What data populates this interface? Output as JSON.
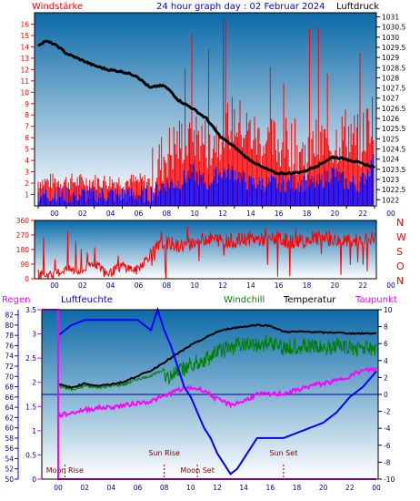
{
  "colors": {
    "red": "#ff0000",
    "blue": "#0000ff",
    "black": "#000000",
    "green": "#008000",
    "magenta": "#ff00ff",
    "navy": "#00008b",
    "maroon": "#800000",
    "bg_top": "#0b6aa8",
    "bg_bottom": "#ffffff"
  },
  "header": {
    "left": "Windstärke",
    "center": "24 hour graph day : 02 Februar 2024",
    "right": "Luftdruck"
  },
  "chart_data": [
    {
      "type": "line",
      "name": "wind-and-pressure",
      "x_ticks": [
        "00",
        "02",
        "04",
        "06",
        "08",
        "10",
        "12",
        "14",
        "16",
        "18",
        "20",
        "22",
        "00"
      ],
      "left_axis": {
        "label": "Windstärke",
        "ticks": [
          1,
          2,
          3,
          4,
          5,
          6,
          7,
          8,
          9,
          10,
          11,
          12,
          13,
          14,
          15,
          16
        ],
        "ylim": [
          0,
          17
        ]
      },
      "right_axis": {
        "label": "Luftdruck",
        "ticks": [
          1031,
          1030.5,
          1030,
          1029.5,
          1029,
          1028.5,
          1028,
          1027.5,
          1027,
          1026.5,
          1026,
          1025.5,
          1025,
          1024.5,
          1024,
          1023.5,
          1023,
          1022.5,
          1022
        ],
        "ylim": [
          1021.7,
          1031.2
        ]
      },
      "series": [
        {
          "name": "Luftdruck",
          "axis": "right",
          "color": "#000000",
          "x": [
            0,
            0.5,
            1,
            1.5,
            2,
            3,
            4,
            5,
            6,
            7,
            8,
            8.5,
            9,
            9.5,
            10,
            11,
            12,
            13,
            14,
            15,
            16,
            17,
            18,
            19,
            20,
            20.5,
            21,
            22,
            23,
            24
          ],
          "y": [
            1029.6,
            1029.8,
            1029.7,
            1029.5,
            1029.2,
            1028.9,
            1028.6,
            1028.4,
            1028.3,
            1028.1,
            1027.5,
            1027.6,
            1027.6,
            1027.3,
            1026.9,
            1026.5,
            1026.0,
            1025.1,
            1024.6,
            1024.0,
            1023.6,
            1023.3,
            1023.3,
            1023.4,
            1023.7,
            1023.9,
            1024.1,
            1024.0,
            1023.8,
            1023.6
          ]
        },
        {
          "name": "wind gust (red)",
          "axis": "left",
          "color": "#ff0000",
          "x": [
            0,
            2,
            4,
            6,
            8,
            9,
            10,
            11,
            12,
            13,
            14,
            15,
            16,
            17,
            18,
            19,
            20,
            21,
            22,
            23,
            24
          ],
          "y": [
            2,
            2,
            2,
            2,
            2,
            4,
            5,
            6,
            5,
            6,
            7,
            6,
            5,
            5,
            5,
            4,
            5,
            5,
            6,
            5,
            8
          ]
        },
        {
          "name": "wind avg (blue)",
          "axis": "left",
          "color": "#0000ff",
          "x": [
            0,
            2,
            4,
            6,
            8,
            9,
            10,
            11,
            12,
            13,
            14,
            15,
            16,
            17,
            18,
            19,
            20,
            21,
            22,
            23,
            24
          ],
          "y": [
            1,
            1,
            1,
            1,
            1,
            2,
            2,
            3,
            2,
            3,
            3,
            2,
            2,
            2,
            2,
            2,
            2,
            3,
            2,
            2,
            4
          ]
        }
      ]
    },
    {
      "type": "line",
      "name": "wind-direction",
      "x_ticks": [
        "00",
        "02",
        "04",
        "06",
        "08",
        "10",
        "12",
        "14",
        "16",
        "18",
        "20",
        "22",
        "00"
      ],
      "left_axis": {
        "ticks": [
          0,
          90,
          180,
          270,
          360
        ],
        "ylim": [
          0,
          360
        ]
      },
      "right_labels": [
        "N",
        "W",
        "S",
        "O",
        "N"
      ],
      "series": [
        {
          "name": "wind direction",
          "color": "#ff0000",
          "x": [
            0,
            1,
            2,
            3,
            4,
            5,
            6,
            7,
            8,
            9,
            10,
            11,
            12,
            13,
            14,
            15,
            16,
            17,
            18,
            19,
            20,
            21,
            22,
            23,
            24
          ],
          "y": [
            30,
            20,
            60,
            40,
            100,
            30,
            80,
            50,
            150,
            230,
            200,
            220,
            250,
            240,
            230,
            250,
            240,
            250,
            230,
            240,
            250,
            240,
            230,
            240,
            250
          ]
        }
      ]
    },
    {
      "type": "line",
      "name": "humidity-temperature",
      "x_ticks": [
        "00",
        "02",
        "04",
        "06",
        "08",
        "10",
        "12",
        "14",
        "16",
        "18",
        "20",
        "22",
        "00"
      ],
      "headers": [
        "Regen",
        "Luftfeuchte",
        "Windchill",
        "Temperatur",
        "Taupunkt"
      ],
      "left_axis_regen": {
        "label": "Regen",
        "ticks": [
          3.5,
          3,
          2.5,
          2,
          1.5,
          1,
          0.5,
          0
        ],
        "ylim": [
          0,
          3.5
        ]
      },
      "left_axis_humidity": {
        "label": "Luftfeuchte",
        "ticks": [
          82,
          80,
          78,
          76,
          74,
          72,
          70,
          68,
          66,
          64,
          62,
          60,
          58,
          56,
          54,
          52,
          50
        ],
        "ylim": [
          50,
          83
        ]
      },
      "right_axis_temp": {
        "label": "Temperatur",
        "ticks": [
          10,
          8,
          6,
          4,
          2,
          0,
          -2,
          -4,
          -6,
          -8,
          -10
        ],
        "ylim": [
          -10,
          10
        ]
      },
      "annotations": [
        {
          "text": "Moon Rise",
          "x": 0.5
        },
        {
          "text": "Sun Rise",
          "x": 8.0
        },
        {
          "text": "Moon Set",
          "x": 10.5
        },
        {
          "text": "Sun Set",
          "x": 17.0
        }
      ],
      "series": [
        {
          "name": "Luftfeuchte",
          "axis": "humidity",
          "color": "#0000ff",
          "x": [
            0,
            0.5,
            1,
            2,
            3,
            4,
            5,
            6,
            6.5,
            7,
            7.5,
            8,
            8.5,
            9,
            9.5,
            10,
            10.5,
            11,
            11.5,
            12,
            12.5,
            13,
            13.5,
            14,
            14.5,
            15,
            16,
            17,
            18,
            19,
            20,
            21,
            22,
            23,
            24
          ],
          "y": [
            78,
            79,
            80,
            81,
            81,
            81,
            81,
            81,
            80,
            79,
            83,
            79,
            76,
            72,
            68,
            66,
            63,
            60,
            58,
            55,
            53,
            51,
            52,
            54,
            56,
            58,
            58,
            58,
            59,
            60,
            61,
            63,
            66,
            68,
            71
          ]
        },
        {
          "name": "Temperatur",
          "axis": "temp",
          "color": "#000000",
          "x": [
            0,
            1,
            2,
            3,
            4,
            5,
            6,
            7,
            8,
            9,
            10,
            11,
            12,
            13,
            14,
            15,
            16,
            17,
            18,
            19,
            20,
            21,
            22,
            23,
            24
          ],
          "y": [
            1.2,
            0.8,
            1.3,
            1.0,
            1.2,
            1.5,
            2.2,
            2.8,
            3.8,
            4.8,
            5.8,
            6.6,
            7.4,
            7.8,
            8.0,
            8.2,
            8.1,
            7.4,
            7.4,
            7.4,
            7.3,
            7.3,
            7.2,
            7.2,
            7.2
          ]
        },
        {
          "name": "Windchill",
          "axis": "temp",
          "color": "#008000",
          "x": [
            0,
            1,
            2,
            3,
            4,
            5,
            6,
            7,
            8,
            9,
            10,
            11,
            12,
            13,
            14,
            15,
            16,
            17,
            18,
            19,
            20,
            21,
            22,
            23,
            24
          ],
          "y": [
            1.0,
            0.6,
            1.0,
            0.8,
            1.0,
            1.2,
            1.8,
            2.2,
            3.0,
            3.5,
            4.5,
            5.0,
            6.0,
            6.5,
            7.0,
            6.8,
            7.2,
            6.5,
            6.8,
            6.6,
            6.5,
            6.8,
            6.4,
            6.6,
            6.0
          ]
        },
        {
          "name": "Taupunkt",
          "axis": "temp",
          "color": "#ff00ff",
          "x": [
            0,
            1,
            2,
            3,
            4,
            5,
            6,
            7,
            8,
            9,
            10,
            11,
            12,
            13,
            14,
            15,
            16,
            17,
            18,
            19,
            20,
            21,
            22,
            23,
            24
          ],
          "y": [
            -2.5,
            -2.2,
            -1.8,
            -1.6,
            -1.5,
            -1.3,
            -1.0,
            -0.8,
            -0.2,
            0.5,
            0.8,
            0.5,
            -0.6,
            -1.2,
            -0.8,
            0.0,
            0.0,
            0.1,
            0.5,
            1.0,
            1.3,
            1.6,
            2.2,
            2.8,
            3.0
          ]
        },
        {
          "name": "Regen",
          "axis": "regen",
          "color": "#ff00ff",
          "x": [
            0,
            24
          ],
          "y": [
            0,
            0
          ]
        }
      ]
    }
  ]
}
